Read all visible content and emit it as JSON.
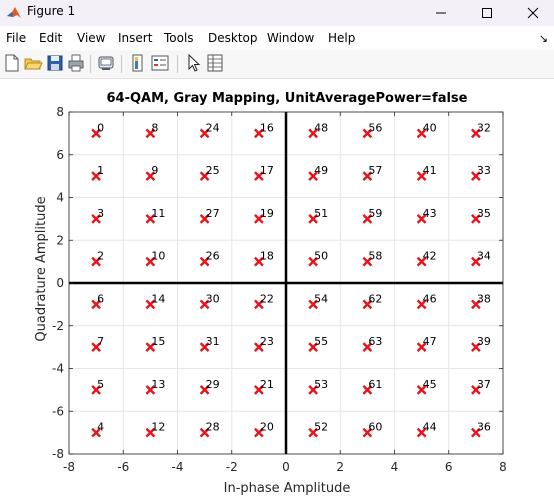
{
  "window": {
    "title": "Figure 1",
    "minimize_icon": "minimize-icon",
    "maximize_icon": "maximize-icon",
    "close_icon": "close-icon"
  },
  "menu": {
    "items": [
      "File",
      "Edit",
      "View",
      "Insert",
      "Tools",
      "Desktop",
      "Window",
      "Help"
    ]
  },
  "toolbar": {
    "icons": [
      "new-figure-icon",
      "open-file-icon",
      "save-icon",
      "print-icon",
      "link-plot-icon",
      "colorbar-icon",
      "legend-icon",
      "edit-plot-icon",
      "property-inspector-icon"
    ]
  },
  "chart_data": {
    "type": "scatter",
    "title": "64-QAM, Gray Mapping, UnitAveragePower=false",
    "xlabel": "In-phase Amplitude",
    "ylabel": "Quadrature Amplitude",
    "xlim": [
      -8,
      8
    ],
    "ylim": [
      -8,
      8
    ],
    "xticks": [
      "-8",
      "-6",
      "-4",
      "-2",
      "0",
      "2",
      "4",
      "6",
      "8"
    ],
    "yticks": [
      "8",
      "6",
      "4",
      "2",
      "0",
      "-2",
      "-4",
      "-6",
      "-8"
    ],
    "grid": true,
    "marker": "x",
    "marker_color": "#e8141c",
    "points": [
      {
        "x": -7,
        "y": 7,
        "label": "0"
      },
      {
        "x": -7,
        "y": 5,
        "label": "1"
      },
      {
        "x": -7,
        "y": 3,
        "label": "3"
      },
      {
        "x": -7,
        "y": 1,
        "label": "2"
      },
      {
        "x": -7,
        "y": -1,
        "label": "6"
      },
      {
        "x": -7,
        "y": -3,
        "label": "7"
      },
      {
        "x": -7,
        "y": -5,
        "label": "5"
      },
      {
        "x": -7,
        "y": -7,
        "label": "4"
      },
      {
        "x": -5,
        "y": 7,
        "label": "8"
      },
      {
        "x": -5,
        "y": 5,
        "label": "9"
      },
      {
        "x": -5,
        "y": 3,
        "label": "11"
      },
      {
        "x": -5,
        "y": 1,
        "label": "10"
      },
      {
        "x": -5,
        "y": -1,
        "label": "14"
      },
      {
        "x": -5,
        "y": -3,
        "label": "15"
      },
      {
        "x": -5,
        "y": -5,
        "label": "13"
      },
      {
        "x": -5,
        "y": -7,
        "label": "12"
      },
      {
        "x": -3,
        "y": 7,
        "label": "24"
      },
      {
        "x": -3,
        "y": 5,
        "label": "25"
      },
      {
        "x": -3,
        "y": 3,
        "label": "27"
      },
      {
        "x": -3,
        "y": 1,
        "label": "26"
      },
      {
        "x": -3,
        "y": -1,
        "label": "30"
      },
      {
        "x": -3,
        "y": -3,
        "label": "31"
      },
      {
        "x": -3,
        "y": -5,
        "label": "29"
      },
      {
        "x": -3,
        "y": -7,
        "label": "28"
      },
      {
        "x": -1,
        "y": 7,
        "label": "16"
      },
      {
        "x": -1,
        "y": 5,
        "label": "17"
      },
      {
        "x": -1,
        "y": 3,
        "label": "19"
      },
      {
        "x": -1,
        "y": 1,
        "label": "18"
      },
      {
        "x": -1,
        "y": -1,
        "label": "22"
      },
      {
        "x": -1,
        "y": -3,
        "label": "23"
      },
      {
        "x": -1,
        "y": -5,
        "label": "21"
      },
      {
        "x": -1,
        "y": -7,
        "label": "20"
      },
      {
        "x": 1,
        "y": 7,
        "label": "48"
      },
      {
        "x": 1,
        "y": 5,
        "label": "49"
      },
      {
        "x": 1,
        "y": 3,
        "label": "51"
      },
      {
        "x": 1,
        "y": 1,
        "label": "50"
      },
      {
        "x": 1,
        "y": -1,
        "label": "54"
      },
      {
        "x": 1,
        "y": -3,
        "label": "55"
      },
      {
        "x": 1,
        "y": -5,
        "label": "53"
      },
      {
        "x": 1,
        "y": -7,
        "label": "52"
      },
      {
        "x": 3,
        "y": 7,
        "label": "56"
      },
      {
        "x": 3,
        "y": 5,
        "label": "57"
      },
      {
        "x": 3,
        "y": 3,
        "label": "59"
      },
      {
        "x": 3,
        "y": 1,
        "label": "58"
      },
      {
        "x": 3,
        "y": -1,
        "label": "62"
      },
      {
        "x": 3,
        "y": -3,
        "label": "63"
      },
      {
        "x": 3,
        "y": -5,
        "label": "61"
      },
      {
        "x": 3,
        "y": -7,
        "label": "60"
      },
      {
        "x": 5,
        "y": 7,
        "label": "40"
      },
      {
        "x": 5,
        "y": 5,
        "label": "41"
      },
      {
        "x": 5,
        "y": 3,
        "label": "43"
      },
      {
        "x": 5,
        "y": 1,
        "label": "42"
      },
      {
        "x": 5,
        "y": -1,
        "label": "46"
      },
      {
        "x": 5,
        "y": -3,
        "label": "47"
      },
      {
        "x": 5,
        "y": -5,
        "label": "45"
      },
      {
        "x": 5,
        "y": -7,
        "label": "44"
      },
      {
        "x": 7,
        "y": 7,
        "label": "32"
      },
      {
        "x": 7,
        "y": 5,
        "label": "33"
      },
      {
        "x": 7,
        "y": 3,
        "label": "35"
      },
      {
        "x": 7,
        "y": 1,
        "label": "34"
      },
      {
        "x": 7,
        "y": -1,
        "label": "38"
      },
      {
        "x": 7,
        "y": -3,
        "label": "39"
      },
      {
        "x": 7,
        "y": -5,
        "label": "37"
      },
      {
        "x": 7,
        "y": -7,
        "label": "36"
      }
    ]
  }
}
